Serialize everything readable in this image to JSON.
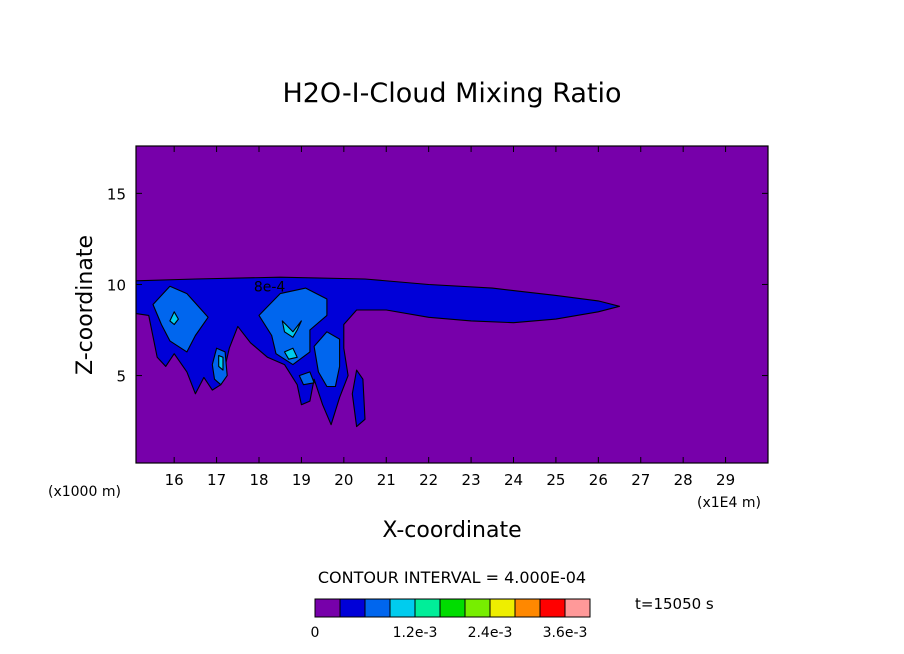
{
  "chart_data": {
    "type": "contour",
    "title": "H2O-I-Cloud Mixing Ratio",
    "xlabel": "X-coordinate",
    "ylabel": "Z-coordinate",
    "x_unit_left": "(x1000 m)",
    "x_unit_right": "(x1E4 m)",
    "x_ticks": [
      "16",
      "17",
      "18",
      "19",
      "20",
      "21",
      "22",
      "23",
      "24",
      "25",
      "26",
      "27",
      "28",
      "29"
    ],
    "y_ticks": [
      "5",
      "10",
      "15"
    ],
    "xlim": [
      15.1,
      30.0
    ],
    "ylim": [
      0.2,
      17.6
    ],
    "contour_label": "8e-4",
    "contour_interval_text": "CONTOUR INTERVAL = 4.000E-04",
    "time_text": "t=15050 s",
    "colorbar": {
      "colors": [
        "#7700aa",
        "#0000d8",
        "#0066ee",
        "#00ccee",
        "#00ee99",
        "#00dd00",
        "#77ee00",
        "#eeee00",
        "#ff8800",
        "#ff0000",
        "#ff9999"
      ],
      "tick_labels": [
        "0",
        "1.2e-3",
        "2.4e-3",
        "3.6e-3"
      ]
    },
    "regions": [
      {
        "level": "background",
        "color": "#7700aa",
        "points": [
          [
            15.1,
            0.2
          ],
          [
            30.0,
            0.2
          ],
          [
            30.0,
            17.6
          ],
          [
            15.1,
            17.6
          ]
        ]
      },
      {
        "level": "4e-4",
        "color": "#0000d8",
        "points": [
          [
            15.1,
            10.2
          ],
          [
            16.5,
            10.3
          ],
          [
            18.5,
            10.4
          ],
          [
            20.5,
            10.3
          ],
          [
            22.0,
            10.0
          ],
          [
            23.5,
            9.8
          ],
          [
            25.0,
            9.4
          ],
          [
            26.0,
            9.1
          ],
          [
            26.5,
            8.8
          ],
          [
            26.0,
            8.5
          ],
          [
            25.0,
            8.1
          ],
          [
            24.0,
            7.9
          ],
          [
            23.0,
            8.0
          ],
          [
            22.0,
            8.2
          ],
          [
            21.0,
            8.6
          ],
          [
            20.3,
            8.6
          ],
          [
            20.0,
            7.8
          ],
          [
            20.0,
            6.5
          ],
          [
            20.1,
            5.0
          ],
          [
            19.9,
            3.8
          ],
          [
            19.7,
            2.3
          ],
          [
            19.5,
            3.4
          ],
          [
            19.3,
            4.8
          ],
          [
            19.2,
            3.6
          ],
          [
            19.0,
            3.4
          ],
          [
            18.9,
            4.5
          ],
          [
            18.6,
            5.6
          ],
          [
            18.2,
            6.0
          ],
          [
            17.8,
            6.8
          ],
          [
            17.5,
            7.7
          ],
          [
            17.3,
            6.5
          ],
          [
            17.1,
            4.5
          ],
          [
            16.9,
            4.2
          ],
          [
            16.7,
            4.9
          ],
          [
            16.5,
            4.0
          ],
          [
            16.3,
            5.2
          ],
          [
            16.0,
            6.2
          ],
          [
            15.8,
            5.5
          ],
          [
            15.6,
            6.0
          ],
          [
            15.4,
            8.3
          ],
          [
            15.1,
            8.4
          ]
        ]
      },
      {
        "level": "4e-4",
        "color": "#0000d8",
        "points": [
          [
            20.3,
            2.2
          ],
          [
            20.5,
            2.6
          ],
          [
            20.45,
            4.8
          ],
          [
            20.3,
            5.3
          ],
          [
            20.2,
            4.0
          ]
        ]
      },
      {
        "level": "8e-4",
        "color": "#0066ee",
        "points": [
          [
            15.5,
            8.9
          ],
          [
            15.9,
            9.9
          ],
          [
            16.3,
            9.5
          ],
          [
            16.8,
            8.2
          ],
          [
            16.5,
            7.2
          ],
          [
            16.3,
            6.3
          ],
          [
            15.9,
            6.9
          ],
          [
            15.7,
            7.8
          ]
        ]
      },
      {
        "level": "8e-4",
        "color": "#0066ee",
        "points": [
          [
            17.0,
            6.5
          ],
          [
            17.2,
            6.3
          ],
          [
            17.25,
            5.0
          ],
          [
            17.1,
            4.5
          ],
          [
            16.95,
            4.8
          ],
          [
            16.9,
            5.6
          ]
        ]
      },
      {
        "level": "8e-4",
        "color": "#0066ee",
        "points": [
          [
            18.0,
            8.3
          ],
          [
            18.5,
            9.5
          ],
          [
            19.1,
            9.8
          ],
          [
            19.6,
            9.2
          ],
          [
            19.6,
            8.3
          ],
          [
            19.2,
            7.5
          ],
          [
            19.2,
            6.3
          ],
          [
            18.8,
            5.6
          ],
          [
            18.4,
            6.2
          ],
          [
            18.3,
            7.2
          ]
        ]
      },
      {
        "level": "8e-4",
        "color": "#0066ee",
        "points": [
          [
            19.3,
            6.6
          ],
          [
            19.6,
            7.4
          ],
          [
            19.9,
            7.0
          ],
          [
            19.9,
            5.5
          ],
          [
            19.8,
            4.4
          ],
          [
            19.6,
            4.4
          ],
          [
            19.4,
            5.2
          ]
        ]
      },
      {
        "level": "8e-4",
        "color": "#0066ee",
        "points": [
          [
            18.95,
            5.0
          ],
          [
            19.2,
            5.2
          ],
          [
            19.3,
            4.6
          ],
          [
            19.05,
            4.5
          ]
        ]
      },
      {
        "level": "1.2e-3",
        "color": "#00ccee",
        "points": [
          [
            15.9,
            8.0
          ],
          [
            16.0,
            8.5
          ],
          [
            16.1,
            8.1
          ],
          [
            16.0,
            7.8
          ]
        ]
      },
      {
        "level": "1.2e-3",
        "color": "#00ccee",
        "points": [
          [
            17.05,
            6.1
          ],
          [
            17.15,
            6.0
          ],
          [
            17.15,
            5.3
          ],
          [
            17.05,
            5.5
          ]
        ]
      },
      {
        "level": "1.2e-3",
        "color": "#00ccee",
        "points": [
          [
            18.55,
            8.0
          ],
          [
            18.8,
            7.4
          ],
          [
            19.0,
            8.0
          ],
          [
            18.9,
            7.5
          ],
          [
            18.8,
            7.1
          ],
          [
            18.6,
            7.4
          ]
        ]
      },
      {
        "level": "1.2e-3",
        "color": "#00ccee",
        "points": [
          [
            18.6,
            6.3
          ],
          [
            18.8,
            6.5
          ],
          [
            18.9,
            6.0
          ],
          [
            18.7,
            5.9
          ]
        ]
      }
    ]
  }
}
